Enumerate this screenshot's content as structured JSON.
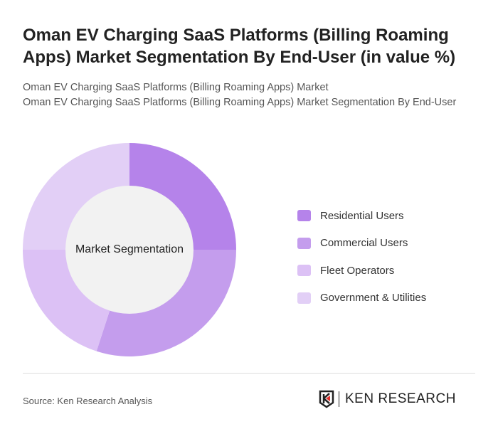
{
  "title": "Oman EV Charging SaaS Platforms (Billing Roaming Apps) Market Segmentation By End-User (in value %)",
  "subtitle1": "Oman EV Charging SaaS Platforms (Billing Roaming Apps) Market",
  "subtitle2": "Oman EV Charging SaaS Platforms (Billing Roaming Apps) Market Segmentation By End-User",
  "chart_data": {
    "type": "pie",
    "variant": "donut",
    "center_label": "Market Segmentation",
    "categories": [
      "Residential Users",
      "Commercial Users",
      "Fleet Operators",
      "Government & Utilities"
    ],
    "values": [
      25,
      30,
      20,
      25
    ],
    "colors": [
      "#b583ea",
      "#c49ded",
      "#dcc1f5",
      "#e2cff6"
    ],
    "legend_position": "right"
  },
  "source": "Source: Ken Research Analysis",
  "logo_text": "KEN RESEARCH"
}
